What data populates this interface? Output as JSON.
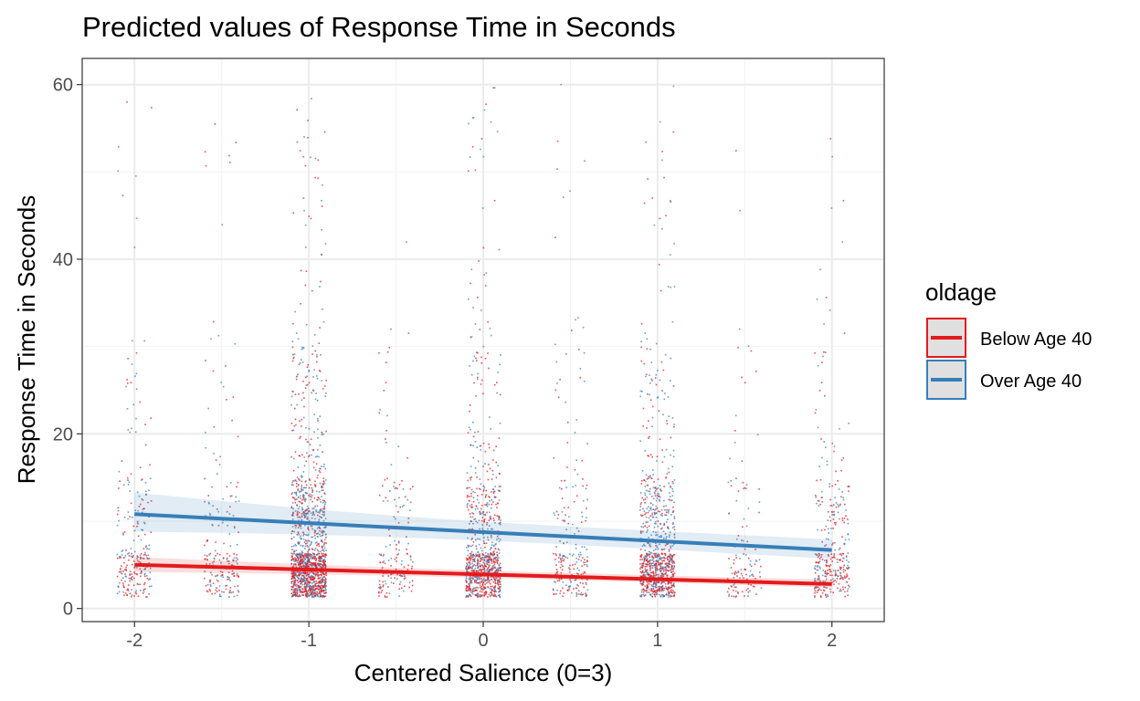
{
  "chart_data": {
    "type": "line",
    "title": "Predicted values of Response Time in Seconds",
    "xlabel": "Centered Salience (0=3)",
    "ylabel": "Response Time in Seconds",
    "xlim": [
      -2.3,
      2.3
    ],
    "ylim": [
      -1.5,
      63
    ],
    "x_ticks": [
      -2,
      -1,
      0,
      1,
      2
    ],
    "x_tick_labels": [
      "-2",
      "-1",
      "0",
      "1",
      "2"
    ],
    "y_ticks": [
      0,
      20,
      40,
      60
    ],
    "y_tick_labels": [
      "0",
      "20",
      "40",
      "60"
    ],
    "grid": true,
    "legend": {
      "title": "oldage",
      "position": "right"
    },
    "series": [
      {
        "name": "Below Age 40",
        "color": "#e41a1c",
        "x": [
          -2,
          2
        ],
        "y": [
          5.0,
          2.8
        ],
        "ci_lower": [
          4.2,
          2.4
        ],
        "ci_upper": [
          5.9,
          3.3
        ]
      },
      {
        "name": "Over Age 40",
        "color": "#377eb8",
        "x": [
          -2,
          2
        ],
        "y": [
          10.8,
          6.7
        ],
        "ci_lower": [
          8.8,
          5.7
        ],
        "ci_upper": [
          13.3,
          7.9
        ]
      }
    ],
    "raw_points": {
      "x_positions": [
        -2,
        -1.5,
        -1,
        -0.5,
        0,
        0.5,
        1,
        1.5,
        2
      ],
      "point_counts": [
        260,
        200,
        1400,
        170,
        900,
        230,
        900,
        130,
        330
      ],
      "y_range": [
        1,
        60
      ],
      "jitter": 0.1
    }
  }
}
